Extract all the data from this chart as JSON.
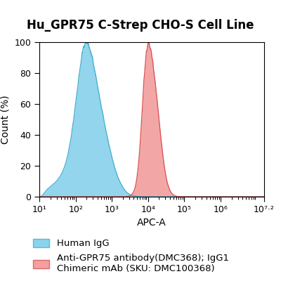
{
  "title": "Hu_GPR75 C-Strep CHO-S Cell Line",
  "xlabel": "APC-A",
  "ylabel": "Count (%)",
  "xlim_log": [
    1,
    7.2
  ],
  "ylim": [
    0,
    100
  ],
  "xtick_positions": [
    1,
    2,
    3,
    4,
    5,
    6,
    7.2
  ],
  "xtick_labels": [
    "10¹",
    "10²",
    "10³",
    "10⁴",
    "10⁵",
    "10⁶",
    "10⁷·²"
  ],
  "blue_color": "#6EC8E8",
  "blue_edge_color": "#45AECE",
  "red_color": "#F08888",
  "red_edge_color": "#D85050",
  "blue_peak_log": 2.48,
  "blue_sigma": 0.38,
  "red_peak_log": 4.12,
  "red_sigma": 0.2,
  "legend_blue_label": "Human IgG",
  "legend_red_label": "Anti-GPR75 antibody(DMC368); IgG1\nChimeric mAb (SKU: DMC100368)",
  "title_fontsize": 12,
  "axis_fontsize": 10,
  "tick_fontsize": 9,
  "legend_fontsize": 9.5,
  "fig_width": 4.0,
  "fig_height": 4.0
}
